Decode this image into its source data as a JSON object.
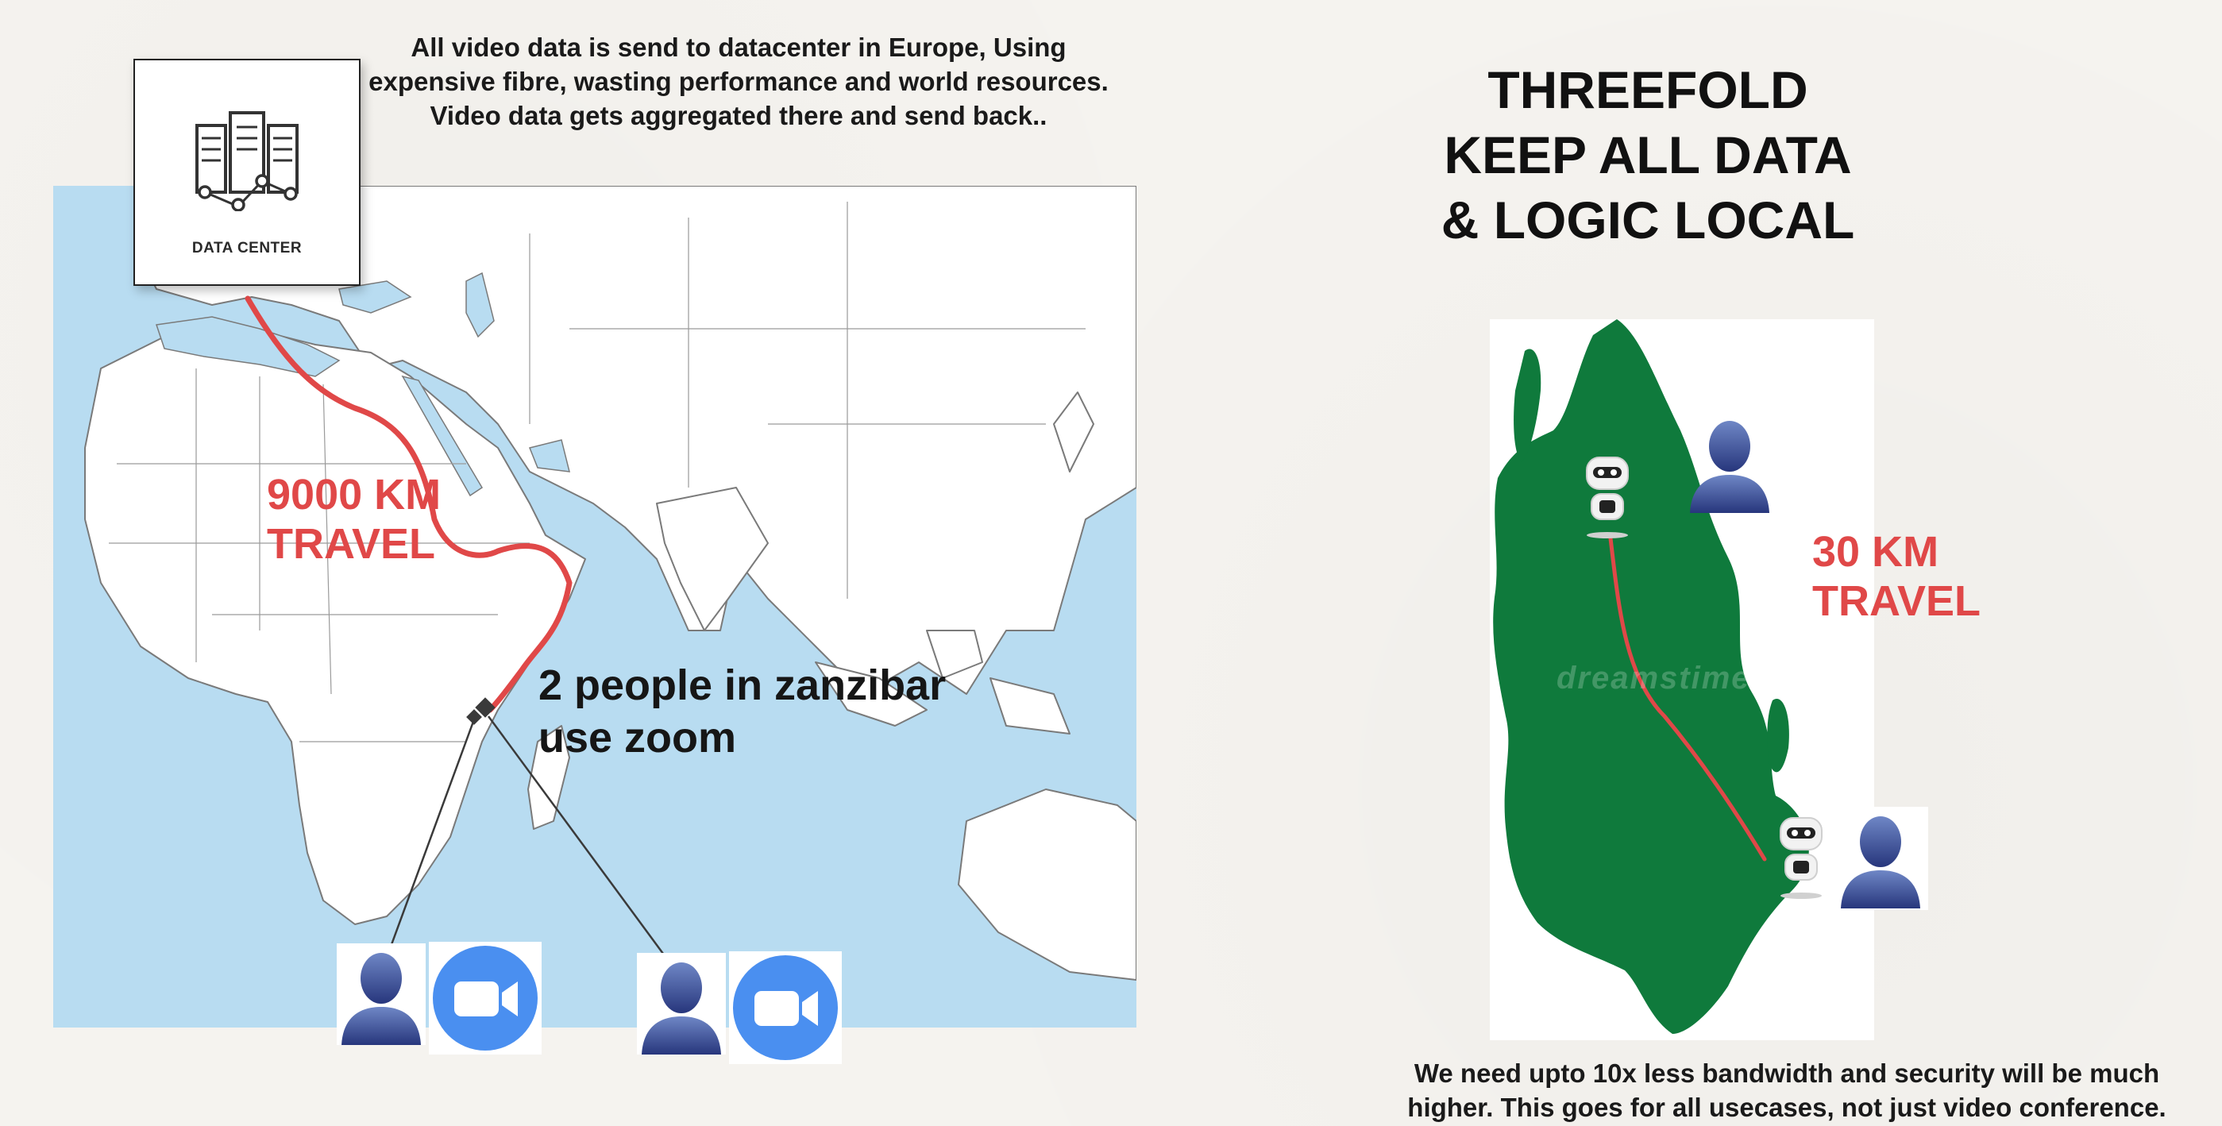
{
  "top_caption": {
    "line1": "All video data is send to datacenter in Europe, Using",
    "line2": "expensive fibre, wasting performance and world resources.",
    "line3": "Video data gets aggregated there and send back.."
  },
  "data_center": {
    "label": "DATA CENTER",
    "icon": "server-icon"
  },
  "left_map": {
    "distance_line1": "9000 KM",
    "distance_line2": "TRAVEL",
    "zanzibar_line1": "2 people in zanzibar",
    "zanzibar_line2": "use zoom",
    "route_color": "#e04848",
    "land_color": "#ffffff",
    "sea_color": "#b8dcf1"
  },
  "users": {
    "person_icon": "person-icon",
    "zoom_icon": "zoom-camera-icon",
    "zoom_color": "#4a8ff0"
  },
  "right": {
    "title_line1": "THREEFOLD",
    "title_line2": "KEEP ALL DATA",
    "title_line3": "& LOGIC LOCAL",
    "distance_line1": "30 KM",
    "distance_line2": "TRAVEL",
    "island_color": "#0f7a3c",
    "watermark": "dreamstime",
    "robot_icon": "robot-icon"
  },
  "bottom_caption": {
    "line1": "We need upto 10x less bandwidth and security will be much",
    "line2": "higher. This goes for all usecases, not just video conference."
  }
}
